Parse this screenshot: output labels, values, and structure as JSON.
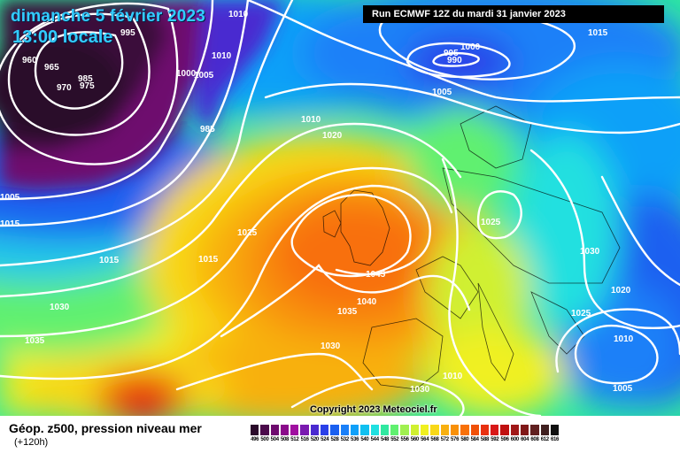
{
  "header": {
    "date": "dimanche 5 février 2023",
    "time": "13:00 locale",
    "run": "Run ECMWF 12Z du mardi 31 janvier 2023"
  },
  "copyright": "Copyright 2023 Meteociel.fr",
  "footer": {
    "title": "Géop. z500, pression niveau mer",
    "subtitle": "(+120h)"
  },
  "legend": {
    "labels": [
      "496",
      "500",
      "504",
      "508",
      "512",
      "516",
      "520",
      "524",
      "528",
      "532",
      "536",
      "540",
      "544",
      "548",
      "552",
      "556",
      "560",
      "564",
      "568",
      "572",
      "576",
      "580",
      "584",
      "588",
      "592",
      "596",
      "600",
      "604",
      "608",
      "612",
      "616"
    ],
    "colors": [
      "#2a0a2a",
      "#4b0a4b",
      "#6e0a6e",
      "#8a0a8a",
      "#a010a0",
      "#7a1ab0",
      "#4a2ad0",
      "#2a40e8",
      "#1a60f0",
      "#1a80f8",
      "#10a0f8",
      "#10c0f0",
      "#20e0e0",
      "#30e8a0",
      "#60f070",
      "#a0f050",
      "#d0f030",
      "#f0f020",
      "#f8d818",
      "#f8b010",
      "#f89008",
      "#f87008",
      "#f05008",
      "#e83010",
      "#d81818",
      "#c01010",
      "#a01818",
      "#801818",
      "#602020",
      "#402020",
      "#101010"
    ]
  },
  "pressure_labels": [
    "1010",
    "995",
    "960",
    "965",
    "985",
    "970",
    "975",
    "1005",
    "1015",
    "1010",
    "1000",
    "1005",
    "985",
    "1010",
    "1020",
    "1025",
    "1015",
    "1030",
    "1035",
    "1035",
    "1040",
    "1045",
    "1030",
    "1030",
    "1025",
    "1030",
    "1025",
    "1020",
    "1010",
    "1005",
    "1010",
    "1015",
    "1000",
    "995",
    "990",
    "1005",
    "1015"
  ]
}
